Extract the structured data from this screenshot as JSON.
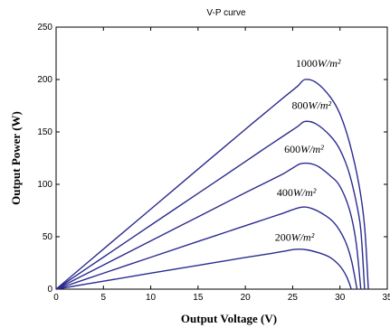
{
  "chart_data": {
    "type": "line",
    "title": "V-P curve",
    "xlabel": "Output Voltage (V)",
    "ylabel": "Output Power (W)",
    "xlim": [
      0,
      35
    ],
    "ylim": [
      0,
      250
    ],
    "xticks": [
      0,
      5,
      10,
      15,
      20,
      25,
      30,
      35
    ],
    "yticks": [
      0,
      50,
      100,
      150,
      200,
      250
    ],
    "grid": false,
    "line_color": "#2b2b8f",
    "series": [
      {
        "name": "1000W/m²",
        "label_prefix": "1000",
        "label_unit": "W/m²",
        "voc": 33.0,
        "peak_v": 26.3,
        "peak_p": 200,
        "points": [
          [
            0,
            0
          ],
          [
            5,
            38.2
          ],
          [
            10,
            76.3
          ],
          [
            15,
            114.5
          ],
          [
            20,
            152.5
          ],
          [
            22,
            167.5
          ],
          [
            24,
            182.5
          ],
          [
            25.5,
            193.5
          ],
          [
            26.3,
            200
          ],
          [
            27.5,
            197
          ],
          [
            29,
            183
          ],
          [
            30,
            167
          ],
          [
            31,
            140
          ],
          [
            32,
            100
          ],
          [
            32.6,
            60
          ],
          [
            33,
            0
          ]
        ]
      },
      {
        "name": "800W/m²",
        "label_prefix": "800",
        "label_unit": "W/m²",
        "voc": 32.6,
        "peak_v": 26.3,
        "peak_p": 160,
        "points": [
          [
            0,
            0
          ],
          [
            5,
            30.5
          ],
          [
            10,
            61
          ],
          [
            15,
            91.3
          ],
          [
            20,
            121.7
          ],
          [
            22,
            134
          ],
          [
            24,
            146
          ],
          [
            25.5,
            155
          ],
          [
            26.3,
            160
          ],
          [
            27.5,
            157.5
          ],
          [
            29,
            146
          ],
          [
            30,
            133
          ],
          [
            31,
            110
          ],
          [
            32,
            70
          ],
          [
            32.3,
            45
          ],
          [
            32.6,
            0
          ]
        ]
      },
      {
        "name": "600W/m²",
        "label_prefix": "600",
        "label_unit": "W/m²",
        "voc": 32.2,
        "peak_v": 26.0,
        "peak_p": 120,
        "points": [
          [
            0,
            0
          ],
          [
            5,
            23
          ],
          [
            10,
            46
          ],
          [
            15,
            69
          ],
          [
            20,
            92
          ],
          [
            22,
            101
          ],
          [
            24,
            110
          ],
          [
            25,
            115.5
          ],
          [
            26,
            120
          ],
          [
            27.5,
            118
          ],
          [
            29,
            108
          ],
          [
            30,
            98
          ],
          [
            31,
            76
          ],
          [
            31.7,
            45
          ],
          [
            32.2,
            0
          ]
        ]
      },
      {
        "name": "400W/m²",
        "label_prefix": "400",
        "label_unit": "W/m²",
        "voc": 31.8,
        "peak_v": 25.8,
        "peak_p": 78,
        "points": [
          [
            0,
            0
          ],
          [
            5,
            15.2
          ],
          [
            10,
            30.4
          ],
          [
            15,
            45.5
          ],
          [
            20,
            60.5
          ],
          [
            22,
            66.5
          ],
          [
            24,
            72.5
          ],
          [
            25.8,
            78
          ],
          [
            27,
            77
          ],
          [
            28.5,
            70
          ],
          [
            29.5,
            62
          ],
          [
            30.5,
            47
          ],
          [
            31.2,
            28
          ],
          [
            31.8,
            0
          ]
        ]
      },
      {
        "name": "200W/m²",
        "label_prefix": "200",
        "label_unit": "W/m²",
        "voc": 31.2,
        "peak_v": 25.3,
        "peak_p": 38,
        "points": [
          [
            0,
            0
          ],
          [
            5,
            7.6
          ],
          [
            10,
            15.2
          ],
          [
            15,
            22.7
          ],
          [
            20,
            30.2
          ],
          [
            22,
            33
          ],
          [
            24,
            36
          ],
          [
            25.3,
            38
          ],
          [
            26.5,
            37.5
          ],
          [
            28,
            34
          ],
          [
            29,
            30
          ],
          [
            30,
            22
          ],
          [
            30.7,
            12
          ],
          [
            31.2,
            0
          ]
        ]
      }
    ],
    "label_positions_data": [
      {
        "x": 27.7,
        "y": 212
      },
      {
        "x": 27.0,
        "y": 172
      },
      {
        "x": 26.2,
        "y": 130
      },
      {
        "x": 25.4,
        "y": 89
      },
      {
        "x": 25.2,
        "y": 46
      }
    ]
  }
}
